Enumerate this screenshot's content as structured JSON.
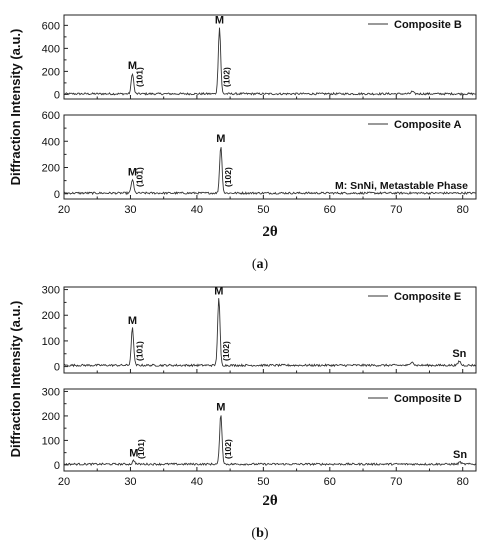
{
  "chart_data": [
    {
      "type": "line",
      "group": "a",
      "caption": {
        "letter": "a"
      },
      "shared_ylabel": "Diffraction Intensity (a.u.)",
      "xlabel": "2θ",
      "xlim": [
        20,
        82
      ],
      "xticks": [
        20,
        30,
        40,
        50,
        60,
        70,
        80
      ],
      "panels": [
        {
          "id": "composite-b",
          "legend": "Composite B",
          "ylim": [
            -40,
            690
          ],
          "yticks": [
            0,
            200,
            400,
            600
          ],
          "baseline": 5,
          "peaks": [
            {
              "x": 30.3,
              "y": 185,
              "phase": "M",
              "hkl": "(101)"
            },
            {
              "x": 43.4,
              "y": 580,
              "phase": "M",
              "hkl": "(102)"
            },
            {
              "x": 72.4,
              "y": 25
            }
          ],
          "annotations": []
        },
        {
          "id": "composite-a",
          "legend": "Composite A",
          "ylim": [
            -40,
            600
          ],
          "yticks": [
            0,
            200,
            400,
            600
          ],
          "baseline": 5,
          "peaks": [
            {
              "x": 30.3,
              "y": 110,
              "phase": "M",
              "hkl": "(101)"
            },
            {
              "x": 43.6,
              "y": 365,
              "phase": "M",
              "hkl": "(102)"
            }
          ],
          "annotations": [
            {
              "text": "M: SnNi, Metastable Phase"
            }
          ]
        }
      ]
    },
    {
      "type": "line",
      "group": "b",
      "caption": {
        "letter": "b"
      },
      "shared_ylabel": "Diffraction Intensity (a.u.)",
      "xlabel": "2θ",
      "xlim": [
        20,
        82
      ],
      "xticks": [
        20,
        30,
        40,
        50,
        60,
        70,
        80
      ],
      "panels": [
        {
          "id": "composite-e",
          "legend": "Composite E",
          "ylim": [
            -25,
            310
          ],
          "yticks": [
            0,
            100,
            200,
            300
          ],
          "baseline": 5,
          "peaks": [
            {
              "x": 30.3,
              "y": 150,
              "phase": "M",
              "hkl": "(101)"
            },
            {
              "x": 43.3,
              "y": 265,
              "phase": "M",
              "hkl": "(102)"
            },
            {
              "x": 72.4,
              "y": 22
            },
            {
              "x": 79.5,
              "y": 22,
              "phase": "Sn"
            }
          ],
          "annotations": []
        },
        {
          "id": "composite-d",
          "legend": "Composite D",
          "ylim": [
            -25,
            310
          ],
          "yticks": [
            0,
            100,
            200,
            300
          ],
          "baseline": 3,
          "peaks": [
            {
              "x": 30.5,
              "y": 18,
              "phase": "M",
              "hkl": "(101)"
            },
            {
              "x": 43.6,
              "y": 205,
              "phase": "M",
              "hkl": "(102)"
            },
            {
              "x": 79.6,
              "y": 12,
              "phase": "Sn"
            }
          ],
          "annotations": []
        }
      ]
    }
  ]
}
